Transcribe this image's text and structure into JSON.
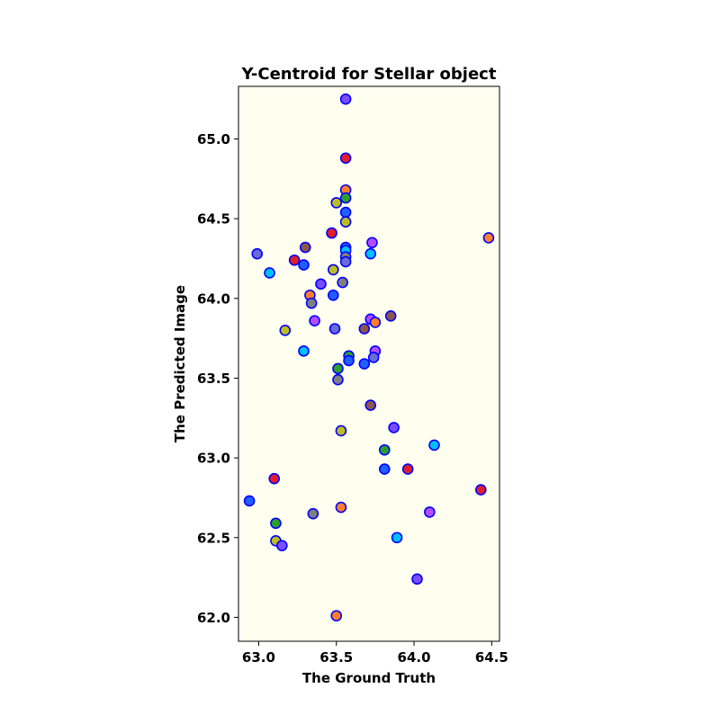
{
  "chart_data": {
    "type": "scatter",
    "title": "Y-Centroid for Stellar object",
    "xlabel": "The Ground Truth",
    "ylabel": "The Predicted Image",
    "xlim": [
      62.87,
      64.55
    ],
    "ylim": [
      61.85,
      65.33
    ],
    "xticks": [
      "63.0",
      "63.5",
      "64.0",
      "64.5"
    ],
    "yticks": [
      "62.0",
      "62.5",
      "63.0",
      "63.5",
      "64.0",
      "64.5",
      "65.0"
    ],
    "grid": false,
    "background": "#fffff0",
    "edge_color": "#0000ff",
    "points": [
      {
        "x": 63.56,
        "y": 65.25,
        "color": "#7b4dff"
      },
      {
        "x": 63.56,
        "y": 64.88,
        "color": "#e01e2b"
      },
      {
        "x": 63.56,
        "y": 64.68,
        "color": "#ff7f2a"
      },
      {
        "x": 63.56,
        "y": 64.63,
        "color": "#2ca02c"
      },
      {
        "x": 63.5,
        "y": 64.6,
        "color": "#bcbd22"
      },
      {
        "x": 63.56,
        "y": 64.54,
        "color": "#1f5fff"
      },
      {
        "x": 63.56,
        "y": 64.48,
        "color": "#bcbd22"
      },
      {
        "x": 63.47,
        "y": 64.41,
        "color": "#e01e2b"
      },
      {
        "x": 64.48,
        "y": 64.38,
        "color": "#ff7f2a"
      },
      {
        "x": 63.73,
        "y": 64.35,
        "color": "#b44dff"
      },
      {
        "x": 63.3,
        "y": 64.32,
        "color": "#8c564b"
      },
      {
        "x": 63.56,
        "y": 64.32,
        "color": "#1f5fff"
      },
      {
        "x": 63.56,
        "y": 64.3,
        "color": "#00bfff"
      },
      {
        "x": 62.99,
        "y": 64.28,
        "color": "#6b6bd6"
      },
      {
        "x": 63.72,
        "y": 64.28,
        "color": "#00bfff"
      },
      {
        "x": 63.56,
        "y": 64.26,
        "color": "#7f7f7f"
      },
      {
        "x": 63.23,
        "y": 64.24,
        "color": "#e01e2b"
      },
      {
        "x": 63.56,
        "y": 64.23,
        "color": "#6b6bd6"
      },
      {
        "x": 63.29,
        "y": 64.21,
        "color": "#1f5fff"
      },
      {
        "x": 63.48,
        "y": 64.18,
        "color": "#bcbd22"
      },
      {
        "x": 63.07,
        "y": 64.16,
        "color": "#00bfff"
      },
      {
        "x": 63.54,
        "y": 64.1,
        "color": "#7f7f7f"
      },
      {
        "x": 63.4,
        "y": 64.09,
        "color": "#7b4dff"
      },
      {
        "x": 63.33,
        "y": 64.02,
        "color": "#ff7f2a"
      },
      {
        "x": 63.48,
        "y": 64.02,
        "color": "#1f5fff"
      },
      {
        "x": 63.34,
        "y": 63.97,
        "color": "#7f7f7f"
      },
      {
        "x": 63.72,
        "y": 63.87,
        "color": "#b44dff"
      },
      {
        "x": 63.85,
        "y": 63.89,
        "color": "#8c564b"
      },
      {
        "x": 63.36,
        "y": 63.86,
        "color": "#b44dff"
      },
      {
        "x": 63.75,
        "y": 63.85,
        "color": "#ff7f2a"
      },
      {
        "x": 63.17,
        "y": 63.8,
        "color": "#bcbd22"
      },
      {
        "x": 63.49,
        "y": 63.81,
        "color": "#6b6bd6"
      },
      {
        "x": 63.68,
        "y": 63.81,
        "color": "#8c564b"
      },
      {
        "x": 63.29,
        "y": 63.67,
        "color": "#00bfff"
      },
      {
        "x": 63.75,
        "y": 63.67,
        "color": "#b44dff"
      },
      {
        "x": 63.58,
        "y": 63.64,
        "color": "#2ca02c"
      },
      {
        "x": 63.74,
        "y": 63.63,
        "color": "#6b6bd6"
      },
      {
        "x": 63.58,
        "y": 63.61,
        "color": "#1f5fff"
      },
      {
        "x": 63.68,
        "y": 63.59,
        "color": "#1f5fff"
      },
      {
        "x": 63.51,
        "y": 63.56,
        "color": "#2ca02c"
      },
      {
        "x": 63.51,
        "y": 63.49,
        "color": "#7f7f7f"
      },
      {
        "x": 63.72,
        "y": 63.33,
        "color": "#8c564b"
      },
      {
        "x": 63.87,
        "y": 63.19,
        "color": "#7b4dff"
      },
      {
        "x": 63.53,
        "y": 63.17,
        "color": "#bcbd22"
      },
      {
        "x": 64.13,
        "y": 63.08,
        "color": "#00bfff"
      },
      {
        "x": 63.81,
        "y": 63.05,
        "color": "#2ca02c"
      },
      {
        "x": 63.81,
        "y": 62.93,
        "color": "#1f5fff"
      },
      {
        "x": 63.96,
        "y": 62.93,
        "color": "#e01e2b"
      },
      {
        "x": 63.1,
        "y": 62.87,
        "color": "#e01e2b"
      },
      {
        "x": 64.43,
        "y": 62.8,
        "color": "#e01e2b"
      },
      {
        "x": 62.94,
        "y": 62.73,
        "color": "#1f5fff"
      },
      {
        "x": 63.53,
        "y": 62.69,
        "color": "#ff7f2a"
      },
      {
        "x": 63.35,
        "y": 62.65,
        "color": "#7f7f7f"
      },
      {
        "x": 64.1,
        "y": 62.66,
        "color": "#b44dff"
      },
      {
        "x": 63.11,
        "y": 62.59,
        "color": "#2ca02c"
      },
      {
        "x": 63.89,
        "y": 62.5,
        "color": "#00bfff"
      },
      {
        "x": 63.11,
        "y": 62.48,
        "color": "#bcbd22"
      },
      {
        "x": 63.15,
        "y": 62.45,
        "color": "#7b4dff"
      },
      {
        "x": 64.02,
        "y": 62.24,
        "color": "#7b4dff"
      },
      {
        "x": 63.5,
        "y": 62.01,
        "color": "#ff7f2a"
      }
    ]
  }
}
